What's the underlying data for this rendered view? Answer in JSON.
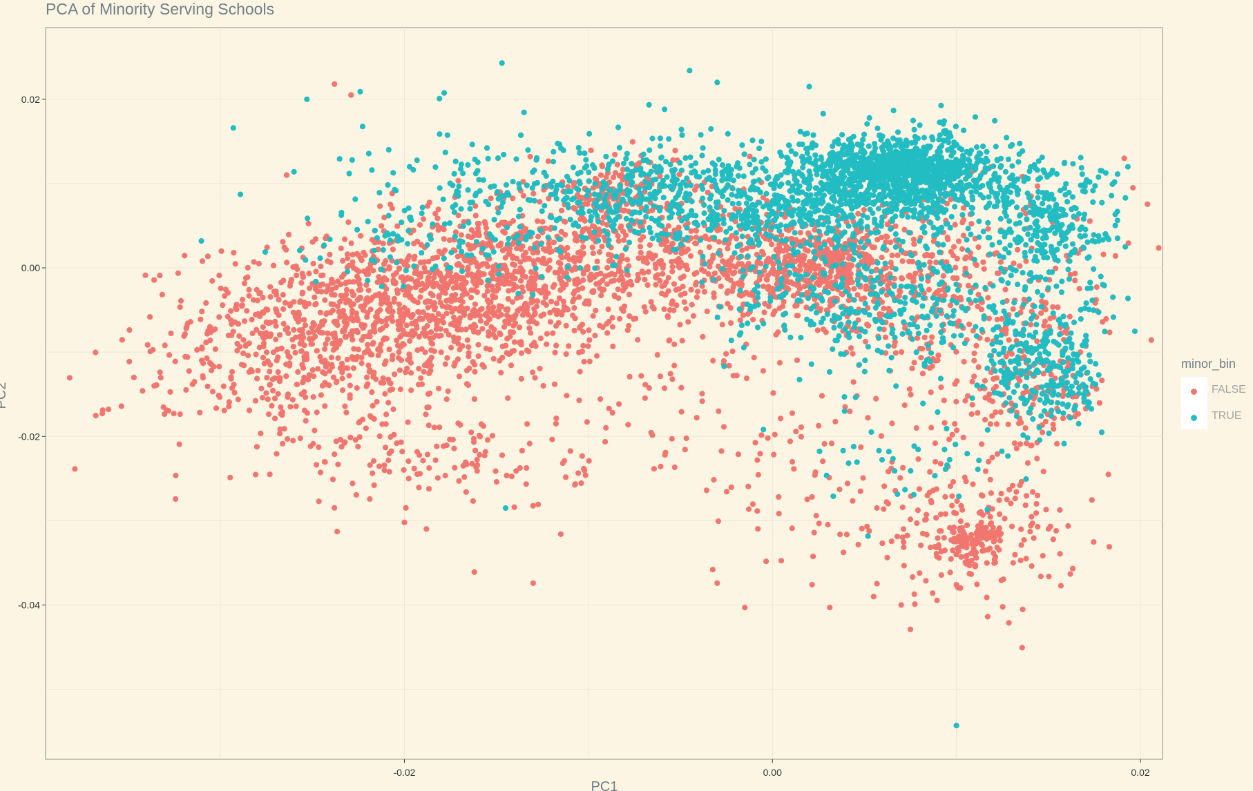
{
  "chart_data": {
    "type": "scatter",
    "title": "PCA of Minority Serving Schools",
    "xlabel": "PC1",
    "ylabel": "PC2",
    "xlim": [
      -0.0395,
      0.0212
    ],
    "ylim": [
      -0.0583,
      0.0285
    ],
    "x_ticks": [
      -0.02,
      0.0,
      0.02
    ],
    "x_tick_labels": [
      "-0.02",
      "0.00",
      "0.02"
    ],
    "y_ticks": [
      0.02,
      0.0,
      -0.02,
      -0.04
    ],
    "y_tick_labels": [
      "0.02",
      "0.00",
      "-0.02",
      "-0.04"
    ],
    "grid": true,
    "legend": {
      "title": "minor_bin",
      "position": "right"
    },
    "series": [
      {
        "name": "FALSE",
        "color": "#f0766f",
        "clusters": [
          {
            "cx": -0.0225,
            "cy": -0.006,
            "sx": 0.0045,
            "sy": 0.0045,
            "n": 700
          },
          {
            "cx": -0.016,
            "cy": -0.002,
            "sx": 0.0045,
            "sy": 0.0045,
            "n": 650
          },
          {
            "cx": -0.008,
            "cy": 0.002,
            "sx": 0.0045,
            "sy": 0.0045,
            "n": 550
          },
          {
            "cx": -0.0085,
            "cy": 0.009,
            "sx": 0.0012,
            "sy": 0.0018,
            "n": 120
          },
          {
            "cx": 0.0025,
            "cy": 0.0,
            "sx": 0.0035,
            "sy": 0.003,
            "n": 600
          },
          {
            "cx": 0.01,
            "cy": -0.004,
            "sx": 0.005,
            "sy": 0.006,
            "n": 350
          },
          {
            "cx": 0.014,
            "cy": -0.015,
            "sx": 0.002,
            "sy": 0.0035,
            "n": 150
          },
          {
            "cx": 0.0105,
            "cy": -0.031,
            "sx": 0.003,
            "sy": 0.004,
            "n": 200
          },
          {
            "cx": 0.011,
            "cy": -0.0325,
            "sx": 0.0008,
            "sy": 0.0012,
            "n": 80
          },
          {
            "cx": -0.026,
            "cy": -0.014,
            "sx": 0.005,
            "sy": 0.004,
            "n": 200
          },
          {
            "cx": -0.018,
            "cy": -0.023,
            "sx": 0.004,
            "sy": 0.003,
            "n": 120
          },
          {
            "cx": -0.005,
            "cy": -0.015,
            "sx": 0.005,
            "sy": 0.005,
            "n": 80
          },
          {
            "cx": 0.002,
            "cy": -0.026,
            "sx": 0.004,
            "sy": 0.005,
            "n": 60
          }
        ],
        "outliers": [
          [
            -0.0347,
            -0.013
          ],
          [
            -0.0336,
            -0.014
          ],
          [
            -0.0238,
            0.0218
          ],
          [
            -0.0229,
            0.0205
          ],
          [
            -0.0264,
            0.011
          ],
          [
            -0.0162,
            -0.0361
          ],
          [
            -0.013,
            -0.0374
          ],
          [
            -0.0015,
            -0.0403
          ],
          [
            -0.003,
            -0.0374
          ],
          [
            0.0075,
            -0.0429
          ],
          [
            0.007,
            -0.04
          ],
          [
            0.01,
            -0.0376
          ],
          [
            -0.02,
            -0.0302
          ],
          [
            -0.0115,
            -0.0316
          ],
          [
            0.0055,
            -0.039
          ]
        ]
      },
      {
        "name": "TRUE",
        "color": "#22bdc2",
        "clusters": [
          {
            "cx": 0.007,
            "cy": 0.011,
            "sx": 0.003,
            "sy": 0.0025,
            "n": 900
          },
          {
            "cx": 0.007,
            "cy": 0.012,
            "sx": 0.0015,
            "sy": 0.0012,
            "n": 250
          },
          {
            "cx": 0.002,
            "cy": 0.008,
            "sx": 0.004,
            "sy": 0.0035,
            "n": 450
          },
          {
            "cx": 0.015,
            "cy": 0.005,
            "sx": 0.002,
            "sy": 0.004,
            "n": 300
          },
          {
            "cx": 0.015,
            "cy": -0.012,
            "sx": 0.0015,
            "sy": 0.004,
            "n": 250
          },
          {
            "cx": -0.005,
            "cy": 0.008,
            "sx": 0.004,
            "sy": 0.003,
            "n": 300
          },
          {
            "cx": -0.012,
            "cy": 0.009,
            "sx": 0.005,
            "sy": 0.0035,
            "n": 250
          },
          {
            "cx": 0.005,
            "cy": -0.004,
            "sx": 0.004,
            "sy": 0.003,
            "n": 250
          },
          {
            "cx": 0.01,
            "cy": -0.008,
            "sx": 0.003,
            "sy": 0.004,
            "n": 100
          },
          {
            "cx": -0.018,
            "cy": 0.003,
            "sx": 0.004,
            "sy": 0.003,
            "n": 90
          },
          {
            "cx": 0.008,
            "cy": -0.022,
            "sx": 0.003,
            "sy": 0.003,
            "n": 40
          }
        ],
        "outliers": [
          [
            -0.0293,
            0.0166
          ],
          [
            -0.0253,
            0.02
          ],
          [
            -0.0224,
            0.0209
          ],
          [
            -0.0147,
            0.0243
          ],
          [
            -0.0045,
            0.0234
          ],
          [
            -0.026,
            0.0114
          ],
          [
            0.01,
            -0.0543
          ],
          [
            -0.0145,
            -0.0285
          ],
          [
            -0.003,
            0.022
          ],
          [
            0.002,
            0.0215
          ]
        ]
      }
    ]
  }
}
